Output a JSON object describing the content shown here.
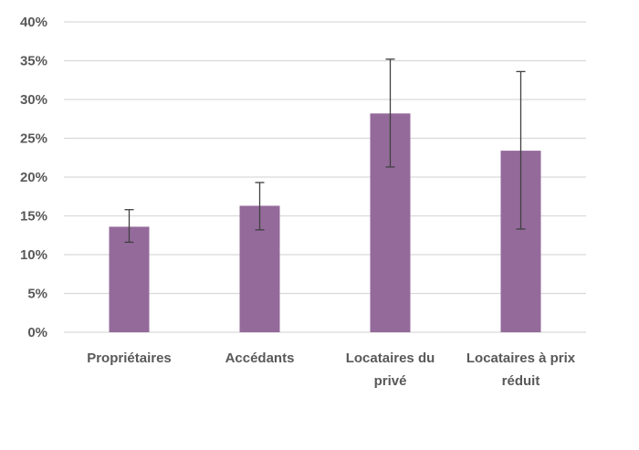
{
  "chart_data": {
    "type": "bar",
    "categories": [
      [
        "Propriétaires"
      ],
      [
        "Accédants"
      ],
      [
        "Locataires du",
        "privé"
      ],
      [
        "Locataires à prix",
        "réduit"
      ]
    ],
    "values": [
      13.6,
      16.3,
      28.2,
      23.4
    ],
    "error_low": [
      11.6,
      13.2,
      21.3,
      13.3
    ],
    "error_high": [
      15.8,
      19.3,
      35.2,
      33.6
    ],
    "ylim": [
      0,
      40
    ],
    "y_ticks": [
      0,
      5,
      10,
      15,
      20,
      25,
      30,
      35,
      40
    ],
    "y_tick_labels": [
      "0%",
      "5%",
      "10%",
      "15%",
      "20%",
      "25%",
      "30%",
      "35%",
      "40%"
    ],
    "grid": true,
    "legend": "none",
    "colors": {
      "bar": "#946a9b",
      "error_bar": "#404040",
      "grid": "#d9d9d9",
      "text": "#595959"
    }
  }
}
